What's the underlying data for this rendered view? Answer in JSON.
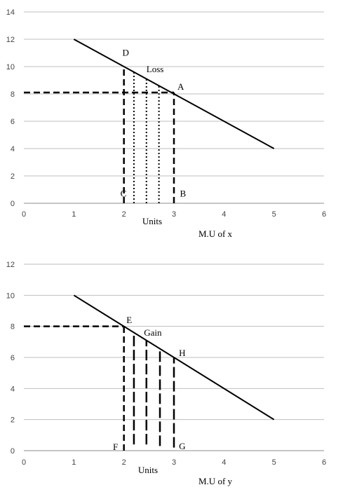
{
  "chart_data": [
    {
      "type": "line",
      "xlabel": "Units",
      "caption": "M.U of x",
      "xlim": [
        0,
        6
      ],
      "ylim": [
        0,
        14
      ],
      "x_ticks": [
        "0",
        "1",
        "2",
        "3",
        "4",
        "5",
        "6"
      ],
      "y_ticks": [
        "0",
        "2",
        "4",
        "6",
        "8",
        "10",
        "12",
        "14"
      ],
      "grid": "horizontal",
      "series": [
        {
          "x": [
            1,
            5
          ],
          "y": [
            12,
            4
          ]
        }
      ],
      "guides": [
        {
          "x1": 0,
          "y1": 8.1,
          "x2": 3,
          "y2": 8.1,
          "style": "dashed"
        },
        {
          "x1": 3,
          "y1": 0,
          "x2": 3,
          "y2": 8.1,
          "style": "dashed"
        },
        {
          "x1": 2,
          "y1": 0,
          "x2": 2,
          "y2": 10,
          "style": "dashed"
        },
        {
          "x1": 2.2,
          "y1": 0,
          "x2": 2.2,
          "y2": 9.6,
          "style": "dotted"
        },
        {
          "x1": 2.45,
          "y1": 0,
          "x2": 2.45,
          "y2": 9.1,
          "style": "dotted"
        },
        {
          "x1": 2.7,
          "y1": 0,
          "x2": 2.7,
          "y2": 8.6,
          "style": "dotted"
        }
      ],
      "annotations": [
        {
          "text": "D",
          "x": 1.97,
          "y": 10.8
        },
        {
          "text": "Loss",
          "x": 2.45,
          "y": 9.6
        },
        {
          "text": "A",
          "x": 3.07,
          "y": 8.3
        },
        {
          "text": "C",
          "x": 1.93,
          "y": 0.5
        },
        {
          "text": "B",
          "x": 3.12,
          "y": 0.5
        }
      ]
    },
    {
      "type": "line",
      "xlabel": "Units",
      "caption": "M.U of y",
      "xlim": [
        0,
        6
      ],
      "ylim": [
        0,
        12
      ],
      "x_ticks": [
        "0",
        "1",
        "2",
        "3",
        "4",
        "5",
        "6"
      ],
      "y_ticks": [
        "0",
        "2",
        "4",
        "6",
        "8",
        "10",
        "12"
      ],
      "grid": "horizontal",
      "series": [
        {
          "x": [
            1,
            5
          ],
          "y": [
            10,
            2
          ]
        }
      ],
      "guides": [
        {
          "x1": 0,
          "y1": 8,
          "x2": 2,
          "y2": 8,
          "style": "dashed"
        },
        {
          "x1": 2,
          "y1": 0,
          "x2": 2,
          "y2": 8,
          "style": "dashed"
        },
        {
          "x1": 2.2,
          "y1": 0.4,
          "x2": 2.2,
          "y2": 7.6,
          "style": "longdash"
        },
        {
          "x1": 2.45,
          "y1": 0.4,
          "x2": 2.45,
          "y2": 7.1,
          "style": "longdash"
        },
        {
          "x1": 2.72,
          "y1": 0.3,
          "x2": 2.72,
          "y2": 6.6,
          "style": "longdash"
        },
        {
          "x1": 3,
          "y1": 0.2,
          "x2": 3,
          "y2": 6,
          "style": "longdash"
        }
      ],
      "annotations": [
        {
          "text": "E",
          "x": 2.05,
          "y": 8.2
        },
        {
          "text": "Gain",
          "x": 2.4,
          "y": 7.4
        },
        {
          "text": "H",
          "x": 3.1,
          "y": 6.1
        },
        {
          "text": "F",
          "x": 1.78,
          "y": 0.05
        },
        {
          "text": "G",
          "x": 3.1,
          "y": 0.1
        }
      ]
    }
  ]
}
